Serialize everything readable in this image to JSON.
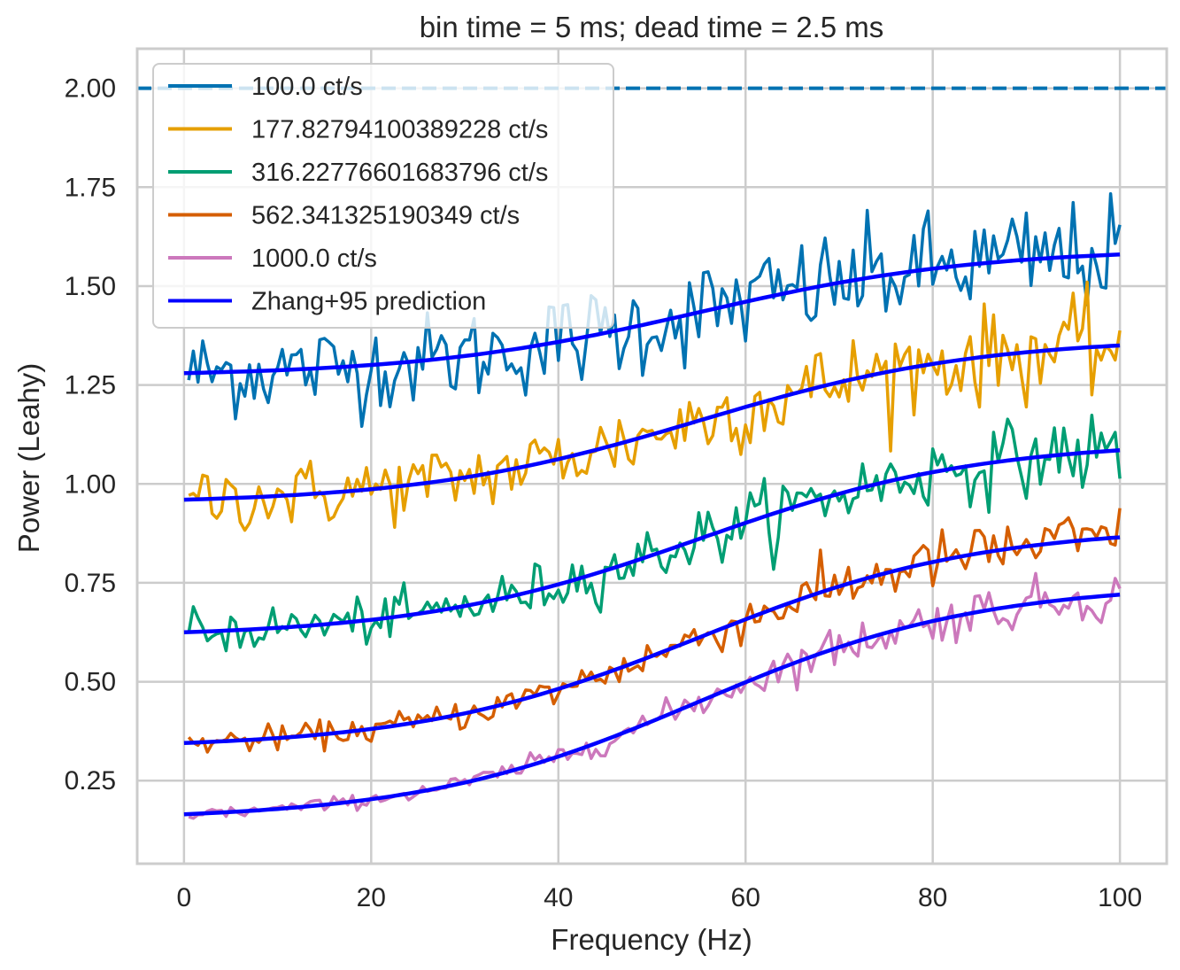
{
  "chart_data": {
    "type": "line",
    "title": "bin time = 5 ms; dead time = 2.5 ms",
    "xlabel": "Frequency (Hz)",
    "ylabel": "Power (Leahy)",
    "xlim": [
      -5,
      105
    ],
    "ylim": [
      0.04,
      2.1
    ],
    "xticks": [
      0,
      20,
      40,
      60,
      80,
      100
    ],
    "yticks": [
      0.25,
      0.5,
      0.75,
      1.0,
      1.25,
      1.5,
      1.75,
      2.0
    ],
    "grid": true,
    "legend_position": "top-left",
    "reference_line": {
      "y": 2.0,
      "style": "dashed",
      "color": "#0072b2"
    },
    "series": [
      {
        "name": "100.0 ct/s",
        "color": "#0072b2",
        "kind": "noisy",
        "model": {
          "base": 1.28,
          "amp": 0.3,
          "mid": 55,
          "width": 15,
          "noise": 0.05
        }
      },
      {
        "name": "177.82794100389228 ct/s",
        "color": "#e69f00",
        "kind": "noisy",
        "model": {
          "base": 0.96,
          "amp": 0.39,
          "mid": 55,
          "width": 15,
          "noise": 0.05
        }
      },
      {
        "name": "316.22776601683796 ct/s",
        "color": "#009e73",
        "kind": "noisy",
        "model": {
          "base": 0.625,
          "amp": 0.46,
          "mid": 55,
          "width": 15,
          "noise": 0.05
        }
      },
      {
        "name": "562.341325190349 ct/s",
        "color": "#d55e00",
        "kind": "noisy",
        "model": {
          "base": 0.345,
          "amp": 0.52,
          "mid": 55,
          "width": 15,
          "noise": 0.05
        }
      },
      {
        "name": "1000.0 ct/s",
        "color": "#cc78bc",
        "kind": "noisy",
        "model": {
          "base": 0.165,
          "amp": 0.555,
          "mid": 55,
          "width": 15,
          "noise": 0.05
        }
      },
      {
        "name": "Zhang+95 prediction",
        "color": "#0000ff",
        "kind": "smooth",
        "models": [
          {
            "base": 1.28,
            "amp": 0.3,
            "mid": 55,
            "width": 15
          },
          {
            "base": 0.96,
            "amp": 0.39,
            "mid": 55,
            "width": 15
          },
          {
            "base": 0.625,
            "amp": 0.46,
            "mid": 55,
            "width": 15
          },
          {
            "base": 0.345,
            "amp": 0.52,
            "mid": 55,
            "width": 15
          },
          {
            "base": 0.165,
            "amp": 0.555,
            "mid": 55,
            "width": 15
          }
        ]
      }
    ]
  }
}
